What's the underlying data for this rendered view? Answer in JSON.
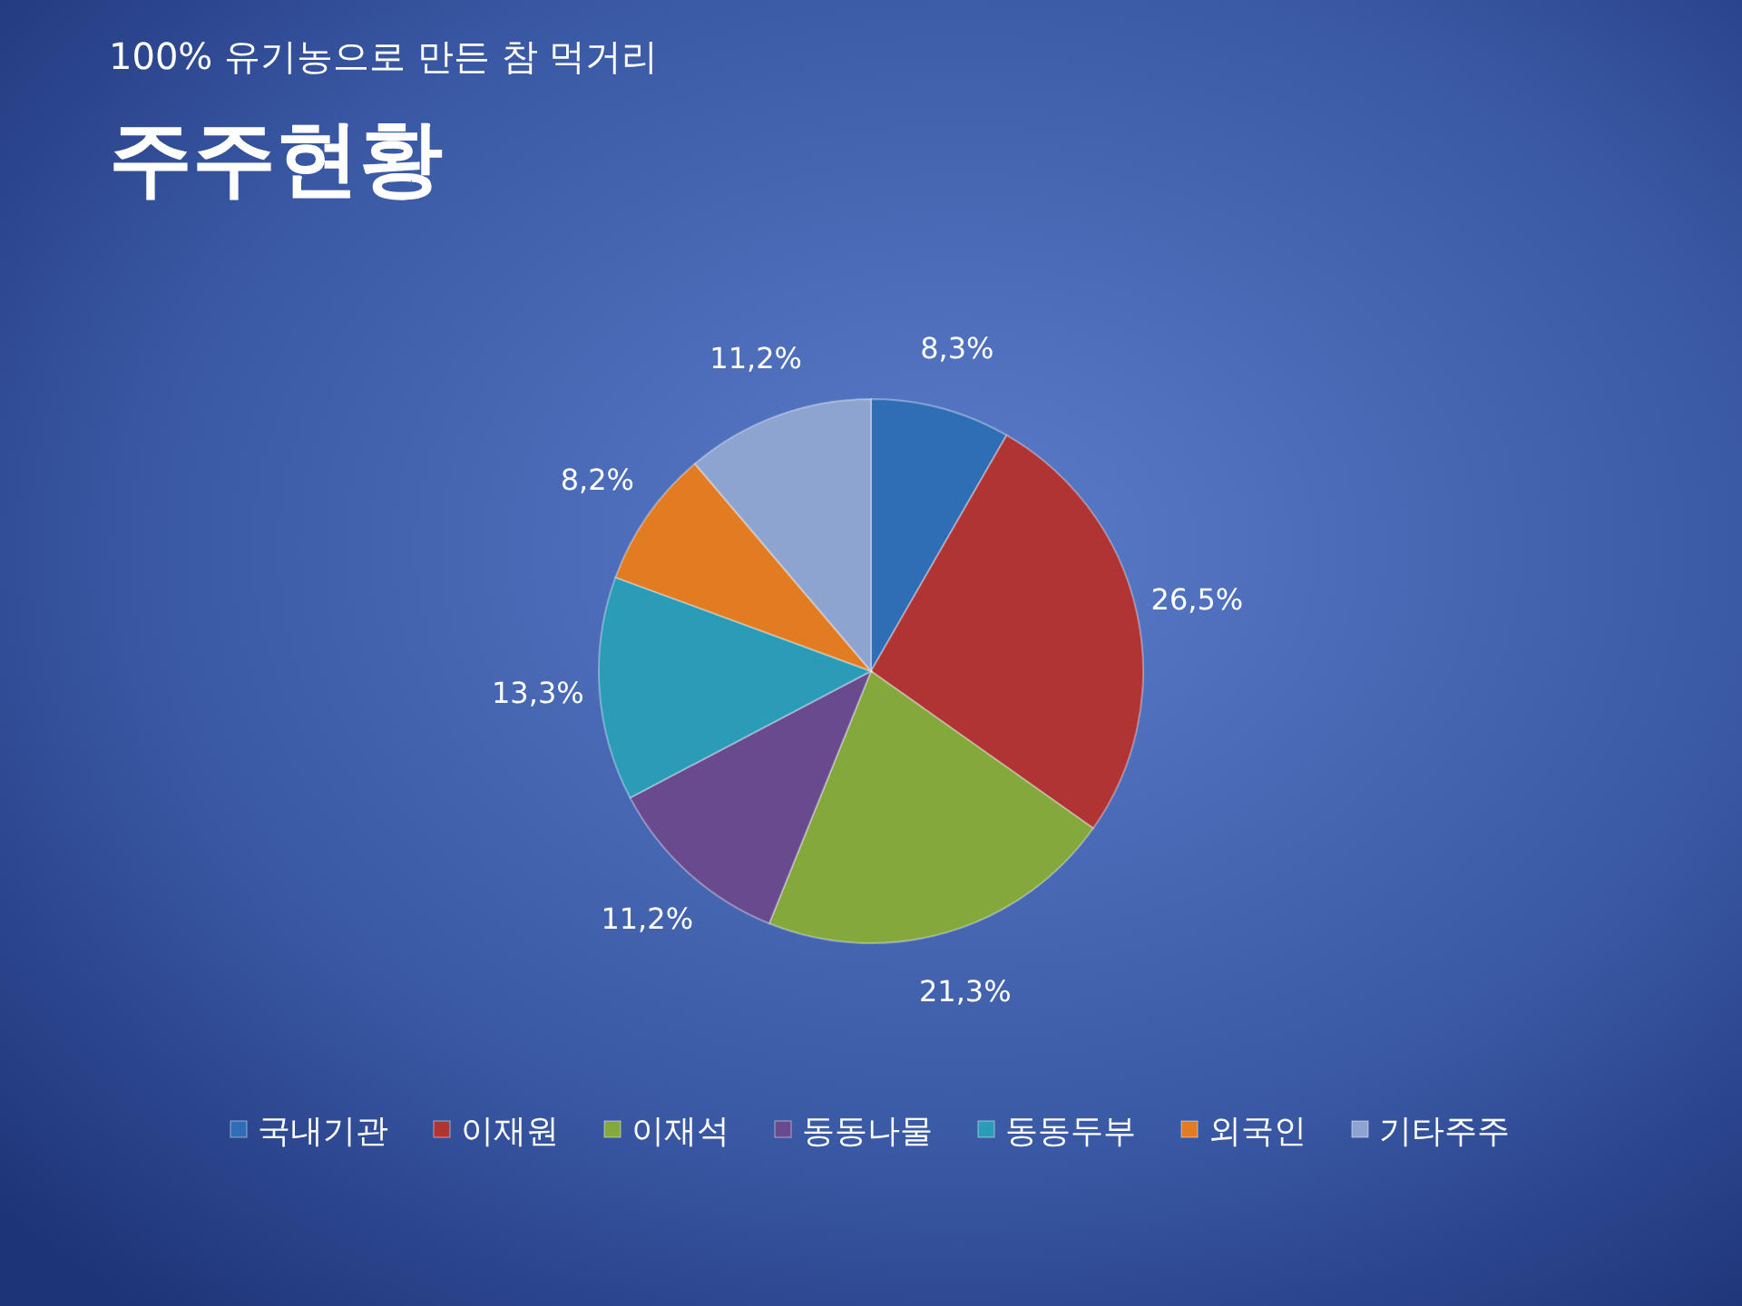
{
  "chart_data": {
    "type": "pie",
    "title": "주주현황",
    "subtitle": "100% 유기농으로 만든 참 먹거리",
    "categories": [
      "국내기관",
      "이재원",
      "이재석",
      "동동나물",
      "동동두부",
      "외국인",
      "기타주주"
    ],
    "values": [
      8.3,
      26.5,
      21.3,
      11.2,
      13.3,
      8.2,
      11.2
    ],
    "value_labels": [
      "8,3%",
      "26,5%",
      "21,3%",
      "11,2%",
      "13,3%",
      "8,2%",
      "11,2%"
    ],
    "colors": [
      "#2f6db4",
      "#b03434",
      "#84a83c",
      "#6a4a8e",
      "#2a9cb8",
      "#e27c22",
      "#8ea4d0"
    ],
    "legend": "bottom"
  }
}
